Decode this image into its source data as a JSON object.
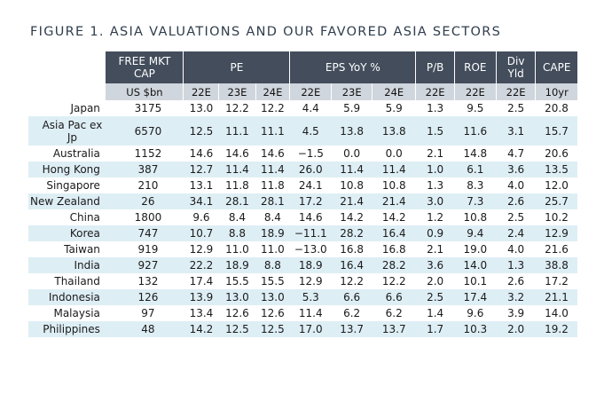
{
  "title": "FIGURE 1. ASIA VALUATIONS AND OUR FAVORED ASIA SECTORS",
  "header": {
    "groups": [
      {
        "label": "FREE MKT CAP",
        "span": 1
      },
      {
        "label": "PE",
        "span": 3
      },
      {
        "label": "EPS YoY %",
        "span": 3
      },
      {
        "label": "P/B",
        "span": 1
      },
      {
        "label": "ROE",
        "span": 1
      },
      {
        "label": "Div Yld",
        "span": 1
      },
      {
        "label": "CAPE",
        "span": 1
      }
    ],
    "subheaders": [
      "US $bn",
      "22E",
      "23E",
      "24E",
      "22E",
      "23E",
      "24E",
      "22E",
      "22E",
      "22E",
      "10yr"
    ]
  },
  "rows": [
    {
      "country": "Japan",
      "values": [
        "3175",
        "13.0",
        "12.2",
        "12.2",
        "4.4",
        "5.9",
        "5.9",
        "1.3",
        "9.5",
        "2.5",
        "20.8"
      ]
    },
    {
      "country": "Asia Pac ex Jp",
      "values": [
        "6570",
        "12.5",
        "11.1",
        "11.1",
        "4.5",
        "13.8",
        "13.8",
        "1.5",
        "11.6",
        "3.1",
        "15.7"
      ]
    },
    {
      "country": "Australia",
      "values": [
        "1152",
        "14.6",
        "14.6",
        "14.6",
        "−1.5",
        "0.0",
        "0.0",
        "2.1",
        "14.8",
        "4.7",
        "20.6"
      ]
    },
    {
      "country": "Hong Kong",
      "values": [
        "387",
        "12.7",
        "11.4",
        "11.4",
        "26.0",
        "11.4",
        "11.4",
        "1.0",
        "6.1",
        "3.6",
        "13.5"
      ]
    },
    {
      "country": "Singapore",
      "values": [
        "210",
        "13.1",
        "11.8",
        "11.8",
        "24.1",
        "10.8",
        "10.8",
        "1.3",
        "8.3",
        "4.0",
        "12.0"
      ]
    },
    {
      "country": "New Zealand",
      "values": [
        "26",
        "34.1",
        "28.1",
        "28.1",
        "17.2",
        "21.4",
        "21.4",
        "3.0",
        "7.3",
        "2.6",
        "25.7"
      ]
    },
    {
      "country": "China",
      "values": [
        "1800",
        "9.6",
        "8.4",
        "8.4",
        "14.6",
        "14.2",
        "14.2",
        "1.2",
        "10.8",
        "2.5",
        "10.2"
      ]
    },
    {
      "country": "Korea",
      "values": [
        "747",
        "10.7",
        "8.8",
        "18.9",
        "−11.1",
        "28.2",
        "16.4",
        "0.9",
        "9.4",
        "2.4",
        "12.9"
      ]
    },
    {
      "country": "Taiwan",
      "values": [
        "919",
        "12.9",
        "11.0",
        "11.0",
        "−13.0",
        "16.8",
        "16.8",
        "2.1",
        "19.0",
        "4.0",
        "21.6"
      ]
    },
    {
      "country": "India",
      "values": [
        "927",
        "22.2",
        "18.9",
        "8.8",
        "18.9",
        "16.4",
        "28.2",
        "3.6",
        "14.0",
        "1.3",
        "38.8"
      ]
    },
    {
      "country": "Thailand",
      "values": [
        "132",
        "17.4",
        "15.5",
        "15.5",
        "12.9",
        "12.2",
        "12.2",
        "2.0",
        "10.1",
        "2.6",
        "17.2"
      ]
    },
    {
      "country": "Indonesia",
      "values": [
        "126",
        "13.9",
        "13.0",
        "13.0",
        "5.3",
        "6.6",
        "6.6",
        "2.5",
        "17.4",
        "3.2",
        "21.1"
      ]
    },
    {
      "country": "Malaysia",
      "values": [
        "97",
        "13.4",
        "12.6",
        "12.6",
        "11.4",
        "6.2",
        "6.2",
        "1.4",
        "9.6",
        "3.9",
        "14.0"
      ]
    },
    {
      "country": "Philippines",
      "values": [
        "48",
        "14.2",
        "12.5",
        "12.5",
        "17.0",
        "13.7",
        "13.7",
        "1.7",
        "10.3",
        "2.0",
        "19.2"
      ]
    }
  ],
  "colors": {
    "header_bg": "#434d5c",
    "subheader_bg": "#d0d6dd",
    "stripe_bg": "#deeef5",
    "title_color": "#2f3d4c"
  }
}
